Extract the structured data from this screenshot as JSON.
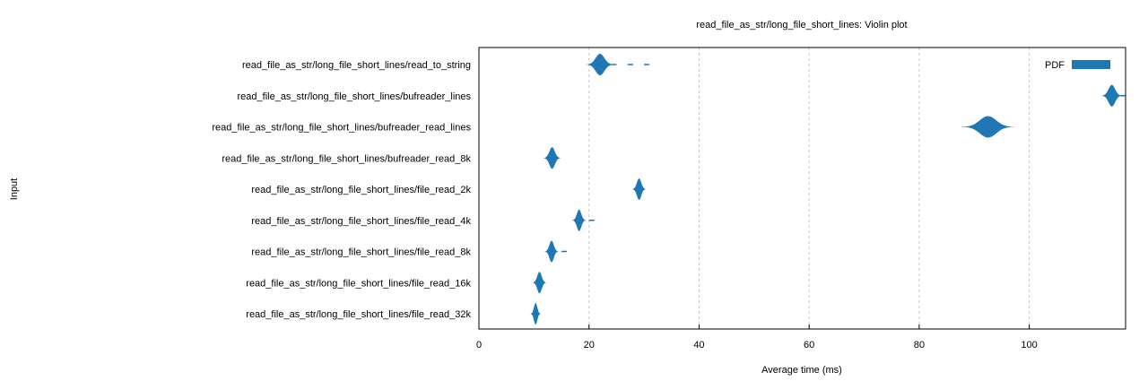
{
  "chart_data": {
    "type": "violin",
    "title": "read_file_as_str/long_file_short_lines: Violin plot",
    "xlabel": "Average time (ms)",
    "ylabel": "Input",
    "xlim": [
      0,
      117.5
    ],
    "xticks": [
      0,
      20,
      40,
      60,
      80,
      100
    ],
    "grid": "vertical dashed",
    "legend": {
      "label": "PDF",
      "placement": "top-right"
    },
    "color": "#1f77b4",
    "categories": [
      "read_file_as_str/long_file_short_lines/read_to_string",
      "read_file_as_str/long_file_short_lines/bufreader_lines",
      "read_file_as_str/long_file_short_lines/bufreader_read_lines",
      "read_file_as_str/long_file_short_lines/bufreader_read_8k",
      "read_file_as_str/long_file_short_lines/file_read_2k",
      "read_file_as_str/long_file_short_lines/file_read_4k",
      "read_file_as_str/long_file_short_lines/file_read_8k",
      "read_file_as_str/long_file_short_lines/file_read_16k",
      "read_file_as_str/long_file_short_lines/file_read_32k"
    ],
    "series": [
      {
        "center": 22.0,
        "spread": 0.8,
        "tail": [
          24.5,
          27.5,
          30.5
        ]
      },
      {
        "center": 115.0,
        "spread": 0.6,
        "tail": [
          117.0
        ]
      },
      {
        "center": 92.5,
        "spread": 1.5,
        "tail": [
          95.0
        ]
      },
      {
        "center": 13.3,
        "spread": 0.5,
        "tail": []
      },
      {
        "center": 29.1,
        "spread": 0.4,
        "tail": []
      },
      {
        "center": 18.2,
        "spread": 0.4,
        "tail": [
          20.5
        ]
      },
      {
        "center": 13.2,
        "spread": 0.4,
        "tail": [
          15.5
        ]
      },
      {
        "center": 11.0,
        "spread": 0.4,
        "tail": []
      },
      {
        "center": 10.3,
        "spread": 0.3,
        "tail": []
      }
    ]
  }
}
